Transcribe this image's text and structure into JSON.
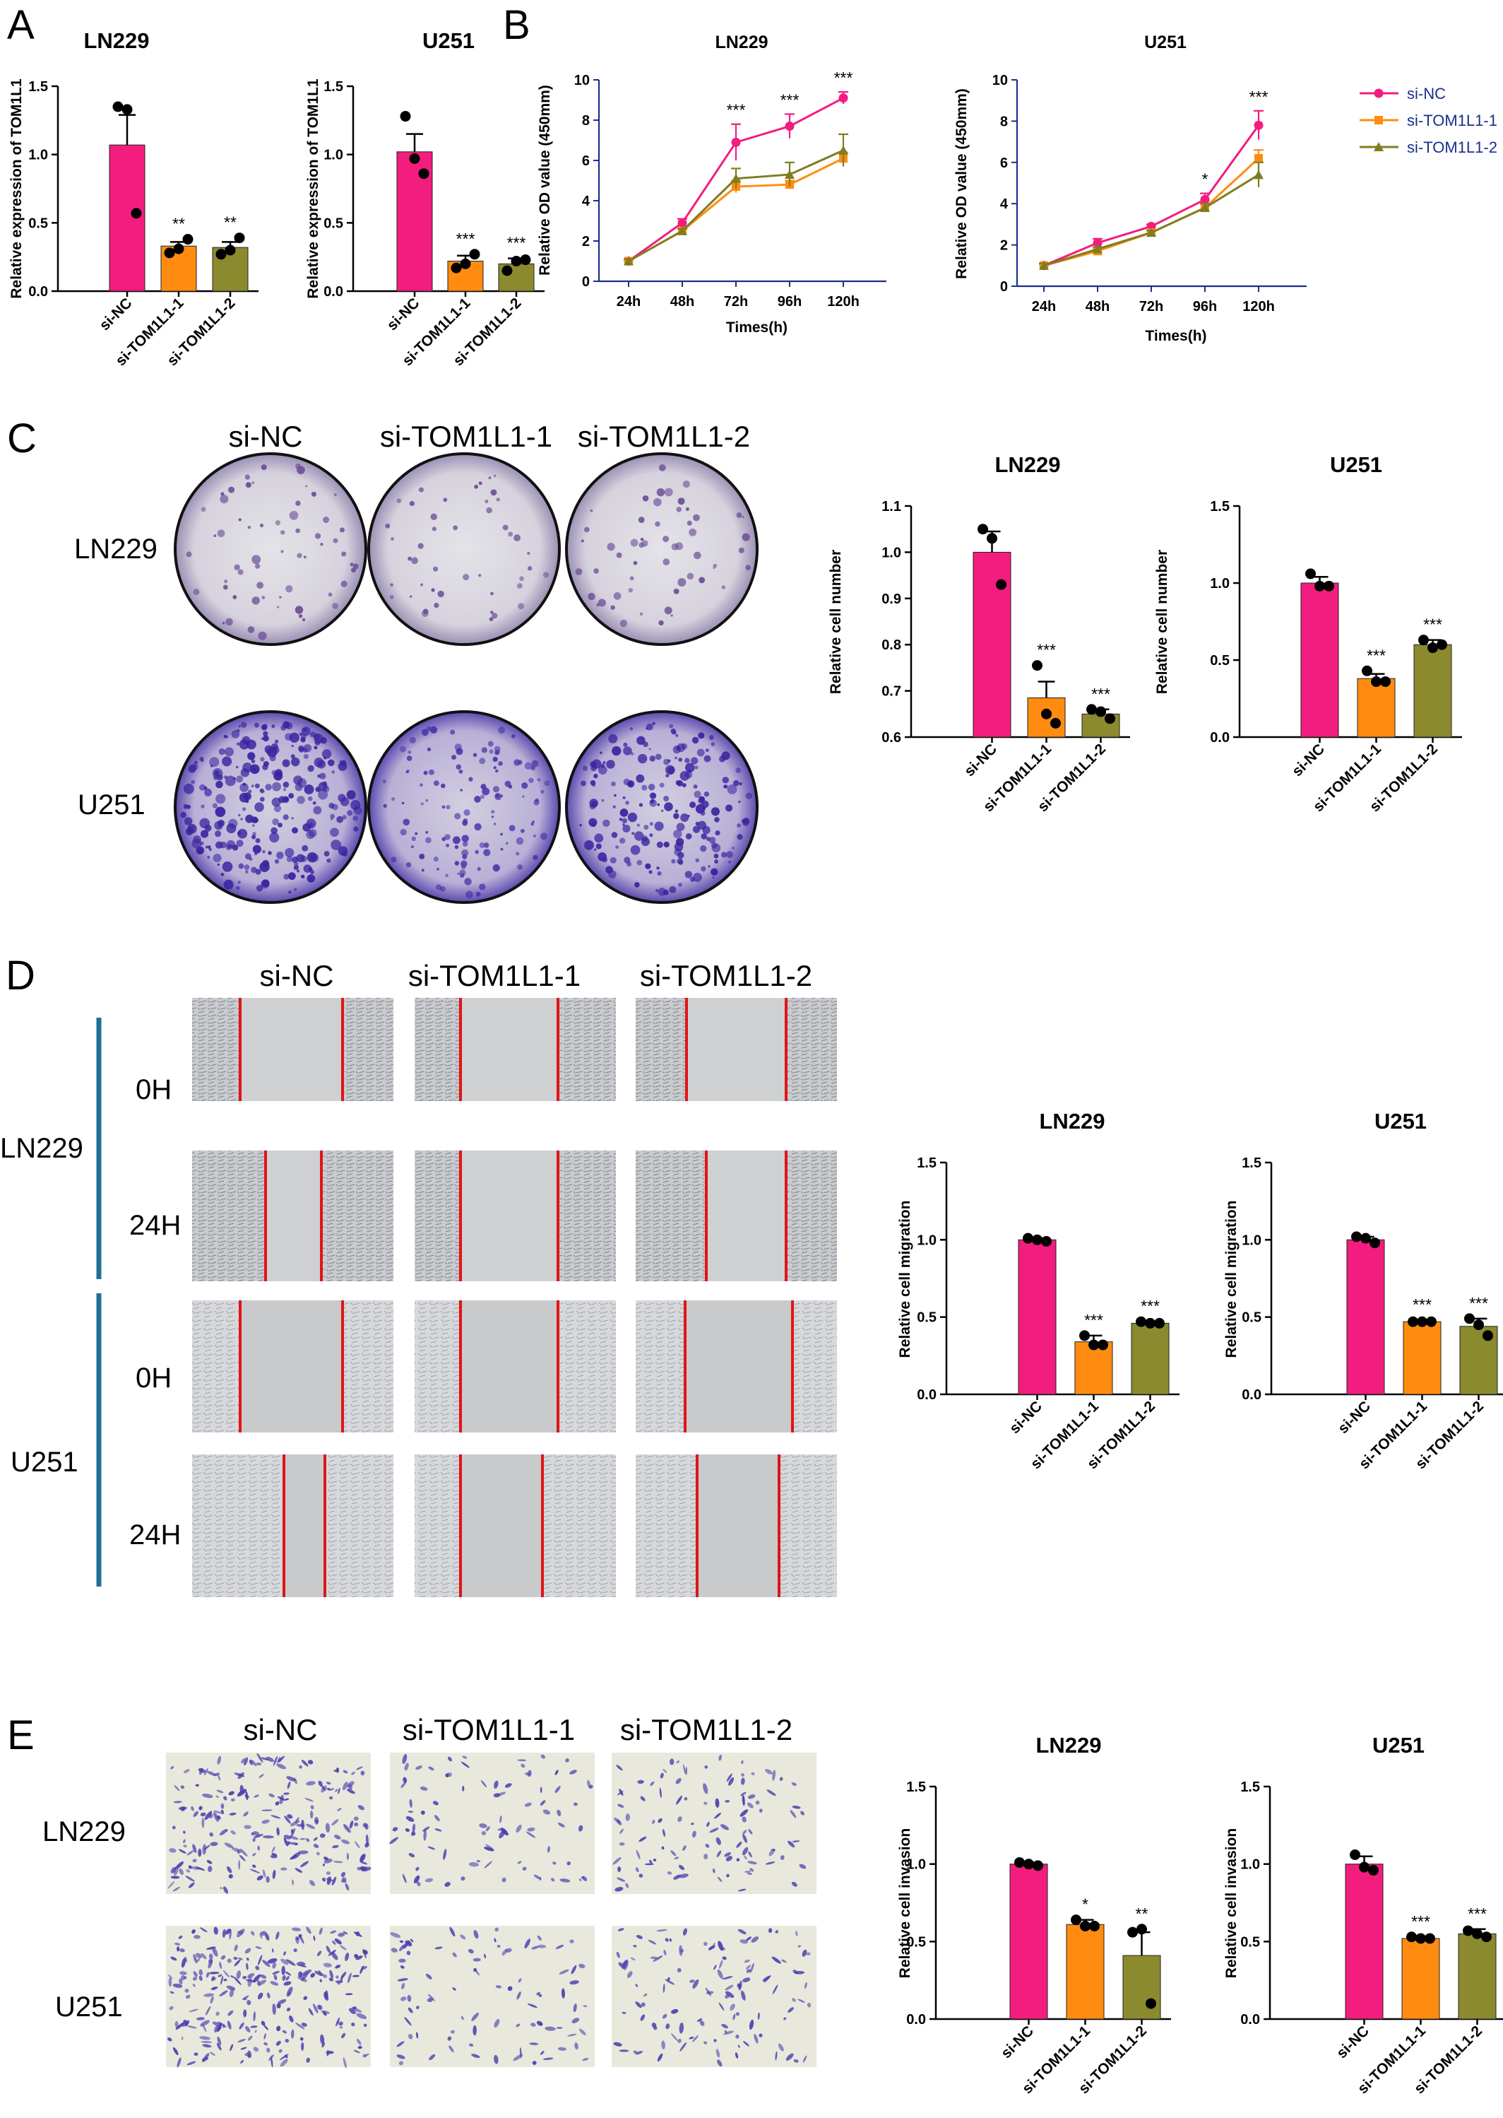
{
  "panels": {
    "A": "A",
    "B": "B",
    "C": "C",
    "D": "D",
    "E": "E"
  },
  "colors": {
    "si_nc": "#F31C7F",
    "si_tom1": "#FF8C10",
    "si_tom2": "#8B8A2E",
    "line_tom2": "#7F7D20",
    "scratch": "#E01515",
    "axis_bar_d": "#1F6F96"
  },
  "chart_data": [
    {
      "id": "A_LN229",
      "type": "bar",
      "title": "LN229",
      "ylabel": "Relative expression of TOM1L1",
      "ylim": [
        0,
        1.5
      ],
      "yticks": [
        "0.0",
        "0.5",
        "1.0",
        "1.5"
      ],
      "categories": [
        "si-NC",
        "si-TOM1L1-1",
        "si-TOM1L1-2"
      ],
      "values": [
        1.07,
        0.33,
        0.32
      ],
      "errors": [
        0.22,
        0.03,
        0.04
      ],
      "points": [
        [
          1.35,
          1.33,
          0.57
        ],
        [
          0.28,
          0.31,
          0.38
        ],
        [
          0.27,
          0.3,
          0.39
        ]
      ],
      "significance": [
        "",
        "**",
        "**"
      ]
    },
    {
      "id": "A_U251",
      "type": "bar",
      "title": "U251",
      "ylabel": "Relative expression of TOM1L1",
      "ylim": [
        0,
        1.5
      ],
      "yticks": [
        "0.0",
        "0.5",
        "1.0",
        "1.5"
      ],
      "categories": [
        "si-NC",
        "si-TOM1L1-1",
        "si-TOM1L1-2"
      ],
      "values": [
        1.02,
        0.22,
        0.2
      ],
      "errors": [
        0.13,
        0.04,
        0.04
      ],
      "points": [
        [
          1.28,
          0.97,
          0.86
        ],
        [
          0.17,
          0.2,
          0.27
        ],
        [
          0.15,
          0.22,
          0.23
        ]
      ],
      "significance": [
        "",
        "***",
        "***"
      ]
    },
    {
      "id": "B_LN229",
      "type": "line",
      "title": "LN229",
      "xlabel": "Times(h)",
      "ylabel": "Relative OD value (450mm)",
      "ylim": [
        0,
        10
      ],
      "yticks": [
        "0",
        "2",
        "4",
        "6",
        "8",
        "10"
      ],
      "x": [
        "24h",
        "48h",
        "72h",
        "96h",
        "120h"
      ],
      "series": [
        {
          "name": "si-NC",
          "values": [
            1.0,
            2.9,
            6.9,
            7.7,
            9.1
          ],
          "errors": [
            0.1,
            0.2,
            0.9,
            0.6,
            0.3
          ]
        },
        {
          "name": "si-TOM1L1-1",
          "values": [
            1.0,
            2.5,
            4.7,
            4.8,
            6.1
          ],
          "errors": [
            0.1,
            0.1,
            0.3,
            0.2,
            0.3
          ]
        },
        {
          "name": "si-TOM1L1-2",
          "values": [
            1.0,
            2.5,
            5.1,
            5.3,
            6.5
          ],
          "errors": [
            0.1,
            0.1,
            0.5,
            0.6,
            0.8
          ]
        }
      ],
      "significance": [
        "",
        "",
        "***",
        "***",
        "***"
      ]
    },
    {
      "id": "B_U251",
      "type": "line",
      "title": "U251",
      "xlabel": "Times(h)",
      "ylabel": "Relative OD value (450mm)",
      "ylim": [
        0,
        10
      ],
      "yticks": [
        "0",
        "2",
        "4",
        "6",
        "8",
        "10"
      ],
      "x": [
        "24h",
        "48h",
        "72h",
        "96h",
        "120h"
      ],
      "series": [
        {
          "name": "si-NC",
          "values": [
            1.0,
            2.1,
            2.9,
            4.2,
            7.8
          ],
          "errors": [
            0.1,
            0.2,
            0.1,
            0.3,
            0.7
          ]
        },
        {
          "name": "si-TOM1L1-1",
          "values": [
            1.0,
            1.7,
            2.6,
            3.8,
            6.2
          ],
          "errors": [
            0.1,
            0.1,
            0.1,
            0.2,
            0.4
          ]
        },
        {
          "name": "si-TOM1L1-2",
          "values": [
            1.0,
            1.8,
            2.6,
            3.8,
            5.4
          ],
          "errors": [
            0.1,
            0.1,
            0.1,
            0.2,
            0.6
          ]
        }
      ],
      "significance": [
        "",
        "",
        "",
        "*",
        "***"
      ],
      "legend": [
        "si-NC",
        "si-TOM1L1-1",
        "si-TOM1L1-2"
      ]
    },
    {
      "id": "C_LN229",
      "type": "bar",
      "title": "LN229",
      "ylabel": "Relative cell number",
      "ylim": [
        0.6,
        1.1
      ],
      "yticks": [
        "0.6",
        "0.7",
        "0.8",
        "0.9",
        "1.0",
        "1.1"
      ],
      "categories": [
        "si-NC",
        "si-TOM1L1-1",
        "si-TOM1L1-2"
      ],
      "values": [
        1.0,
        0.685,
        0.65
      ],
      "errors": [
        0.045,
        0.035,
        0.01
      ],
      "points": [
        [
          1.05,
          1.03,
          0.93
        ],
        [
          0.755,
          0.65,
          0.63
        ],
        [
          0.66,
          0.655,
          0.64
        ]
      ],
      "significance": [
        "",
        "***",
        "***"
      ]
    },
    {
      "id": "C_U251",
      "type": "bar",
      "title": "U251",
      "ylabel": "Relative cell number",
      "ylim": [
        0,
        1.5
      ],
      "yticks": [
        "0.0",
        "0.5",
        "1.0",
        "1.5"
      ],
      "categories": [
        "si-NC",
        "si-TOM1L1-1",
        "si-TOM1L1-2"
      ],
      "values": [
        1.0,
        0.38,
        0.6
      ],
      "errors": [
        0.04,
        0.03,
        0.03
      ],
      "points": [
        [
          1.06,
          0.98,
          0.98
        ],
        [
          0.43,
          0.36,
          0.36
        ],
        [
          0.63,
          0.58,
          0.6
        ]
      ],
      "significance": [
        "",
        "***",
        "***"
      ]
    },
    {
      "id": "D_LN229",
      "type": "bar",
      "title": "LN229",
      "ylabel": "Relative cell migration",
      "ylim": [
        0,
        1.5
      ],
      "yticks": [
        "0.0",
        "0.5",
        "1.0",
        "1.5"
      ],
      "categories": [
        "si-NC",
        "si-TOM1L1-1",
        "si-TOM1L1-2"
      ],
      "values": [
        1.0,
        0.34,
        0.46
      ],
      "errors": [
        0.01,
        0.04,
        0.01
      ],
      "points": [
        [
          1.01,
          1.0,
          0.99
        ],
        [
          0.38,
          0.32,
          0.32
        ],
        [
          0.47,
          0.46,
          0.46
        ]
      ],
      "significance": [
        "",
        "***",
        "***"
      ]
    },
    {
      "id": "D_U251",
      "type": "bar",
      "title": "U251",
      "ylabel": "Relative cell migration",
      "ylim": [
        0,
        1.5
      ],
      "yticks": [
        "0.0",
        "0.5",
        "1.0",
        "1.5"
      ],
      "categories": [
        "si-NC",
        "si-TOM1L1-1",
        "si-TOM1L1-2"
      ],
      "values": [
        1.0,
        0.47,
        0.44
      ],
      "errors": [
        0.02,
        0.01,
        0.05
      ],
      "points": [
        [
          1.02,
          1.01,
          0.98
        ],
        [
          0.47,
          0.47,
          0.47
        ],
        [
          0.49,
          0.45,
          0.38
        ]
      ],
      "significance": [
        "",
        "***",
        "***"
      ]
    },
    {
      "id": "E_LN229",
      "type": "bar",
      "title": "LN229",
      "ylabel": "Relative cell invasion",
      "ylim": [
        0,
        1.5
      ],
      "yticks": [
        "0.0",
        "0.5",
        "1.0",
        "1.5"
      ],
      "categories": [
        "si-NC",
        "si-TOM1L1-1",
        "si-TOM1L1-2"
      ],
      "values": [
        1.0,
        0.61,
        0.41
      ],
      "errors": [
        0.01,
        0.03,
        0.15
      ],
      "points": [
        [
          1.01,
          1.0,
          0.99
        ],
        [
          0.64,
          0.6,
          0.6
        ],
        [
          0.56,
          0.58,
          0.1
        ]
      ],
      "significance": [
        "",
        "*",
        "**"
      ]
    },
    {
      "id": "E_U251",
      "type": "bar",
      "title": "U251",
      "ylabel": "Relative cell invasion",
      "ylim": [
        0,
        1.5
      ],
      "yticks": [
        "0.0",
        "0.5",
        "1.0",
        "1.5"
      ],
      "categories": [
        "si-NC",
        "si-TOM1L1-1",
        "si-TOM1L1-2"
      ],
      "values": [
        1.0,
        0.52,
        0.55
      ],
      "errors": [
        0.05,
        0.01,
        0.03
      ],
      "points": [
        [
          1.06,
          0.98,
          0.96
        ],
        [
          0.53,
          0.52,
          0.52
        ],
        [
          0.57,
          0.55,
          0.53
        ]
      ],
      "significance": [
        "",
        "***",
        "***"
      ]
    }
  ],
  "images": {
    "C": {
      "groups": [
        "si-NC",
        "si-TOM1L1-1",
        "si-TOM1L1-2"
      ],
      "rows": [
        "LN229",
        "U251"
      ]
    },
    "D": {
      "groups": [
        "si-NC",
        "si-TOM1L1-1",
        "si-TOM1L1-2"
      ],
      "cells": [
        "LN229",
        "U251"
      ],
      "times": [
        "0H",
        "24H",
        "0H",
        "24H"
      ]
    },
    "E": {
      "groups": [
        "si-NC",
        "si-TOM1L1-1",
        "si-TOM1L1-2"
      ],
      "rows": [
        "LN229",
        "U251"
      ]
    }
  }
}
